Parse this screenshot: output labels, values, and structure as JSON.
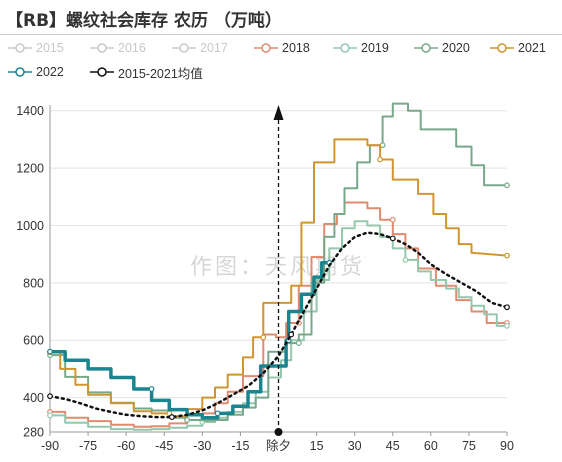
{
  "title": "【RB】螺纹社会库存 农历 （万吨）",
  "watermark": "作图：天风期货",
  "chart_data": {
    "type": "line",
    "title": "【RB】螺纹社会库存 农历 （万吨）",
    "xlabel": "",
    "ylabel": "",
    "xlim": [
      -90,
      90
    ],
    "ylim": [
      280,
      1420
    ],
    "xticks": [
      -90,
      -75,
      -60,
      -45,
      -30,
      -15,
      0,
      15,
      30,
      45,
      60,
      75,
      90
    ],
    "xtick_labels": [
      "-90",
      "-75",
      "-60",
      "-45",
      "-30",
      "-15",
      "除夕",
      "15",
      "30",
      "45",
      "60",
      "75",
      "90"
    ],
    "yticks": [
      280,
      400,
      600,
      800,
      1000,
      1200,
      1400
    ],
    "grid": "horizontal",
    "legend_position": "top",
    "marker_line": {
      "x": 0,
      "label": "除夕",
      "style": "dashed",
      "arrow": "up"
    },
    "series": [
      {
        "name": "2015",
        "color": "#c8c8c8",
        "visible": false,
        "points": []
      },
      {
        "name": "2016",
        "color": "#c8c8c8",
        "visible": false,
        "points": []
      },
      {
        "name": "2017",
        "color": "#c8c8c8",
        "visible": false,
        "points": []
      },
      {
        "name": "2018",
        "color": "#e08b6f",
        "visible": true,
        "width": 2,
        "markers": true,
        "points": [
          [
            -90,
            350
          ],
          [
            -84,
            350
          ],
          [
            -84,
            330
          ],
          [
            -75,
            330
          ],
          [
            -75,
            318
          ],
          [
            -66,
            318
          ],
          [
            -66,
            305
          ],
          [
            -57,
            305
          ],
          [
            -57,
            298
          ],
          [
            -50,
            298
          ],
          [
            -50,
            300
          ],
          [
            -43,
            300
          ],
          [
            -43,
            310
          ],
          [
            -36,
            310
          ],
          [
            -36,
            322
          ],
          [
            -30,
            322
          ],
          [
            -30,
            345
          ],
          [
            -25,
            345
          ],
          [
            -25,
            380
          ],
          [
            -20,
            380
          ],
          [
            -20,
            420
          ],
          [
            -14,
            420
          ],
          [
            -14,
            475
          ],
          [
            -6,
            475
          ],
          [
            -6,
            620
          ],
          [
            -1,
            620
          ],
          [
            -1,
            610
          ],
          [
            3,
            610
          ],
          [
            3,
            660
          ],
          [
            8,
            660
          ],
          [
            8,
            790
          ],
          [
            13,
            790
          ],
          [
            13,
            890
          ],
          [
            18,
            890
          ],
          [
            18,
            1005
          ],
          [
            23,
            1005
          ],
          [
            23,
            1040
          ],
          [
            26,
            1040
          ],
          [
            26,
            1080
          ],
          [
            35,
            1080
          ],
          [
            35,
            1060
          ],
          [
            40,
            1060
          ],
          [
            40,
            1020
          ],
          [
            45,
            1020
          ],
          [
            45,
            970
          ],
          [
            50,
            970
          ],
          [
            50,
            920
          ],
          [
            55,
            920
          ],
          [
            55,
            850
          ],
          [
            62,
            850
          ],
          [
            62,
            790
          ],
          [
            70,
            790
          ],
          [
            70,
            740
          ],
          [
            76,
            740
          ],
          [
            76,
            700
          ],
          [
            82,
            700
          ],
          [
            82,
            660
          ],
          [
            90,
            660
          ]
        ]
      },
      {
        "name": "2019",
        "color": "#94c7ad",
        "visible": true,
        "width": 2,
        "markers": true,
        "points": [
          [
            -90,
            338
          ],
          [
            -84,
            338
          ],
          [
            -84,
            312
          ],
          [
            -75,
            312
          ],
          [
            -75,
            298
          ],
          [
            -66,
            298
          ],
          [
            -66,
            290
          ],
          [
            -57,
            290
          ],
          [
            -57,
            288
          ],
          [
            -50,
            288
          ],
          [
            -50,
            290
          ],
          [
            -43,
            290
          ],
          [
            -43,
            295
          ],
          [
            -36,
            295
          ],
          [
            -36,
            302
          ],
          [
            -30,
            302
          ],
          [
            -30,
            315
          ],
          [
            -25,
            315
          ],
          [
            -25,
            330
          ],
          [
            -20,
            330
          ],
          [
            -20,
            350
          ],
          [
            -14,
            350
          ],
          [
            -14,
            380
          ],
          [
            -9,
            380
          ],
          [
            -9,
            420
          ],
          [
            -4,
            420
          ],
          [
            -4,
            470
          ],
          [
            1,
            470
          ],
          [
            1,
            530
          ],
          [
            5,
            530
          ],
          [
            5,
            600
          ],
          [
            10,
            600
          ],
          [
            10,
            700
          ],
          [
            15,
            700
          ],
          [
            15,
            810
          ],
          [
            20,
            810
          ],
          [
            20,
            920
          ],
          [
            25,
            920
          ],
          [
            25,
            990
          ],
          [
            30,
            990
          ],
          [
            30,
            1015
          ],
          [
            35,
            1015
          ],
          [
            35,
            1000
          ],
          [
            40,
            1000
          ],
          [
            40,
            960
          ],
          [
            45,
            960
          ],
          [
            45,
            920
          ],
          [
            50,
            920
          ],
          [
            50,
            880
          ],
          [
            55,
            880
          ],
          [
            55,
            840
          ],
          [
            60,
            840
          ],
          [
            60,
            810
          ],
          [
            66,
            810
          ],
          [
            66,
            780
          ],
          [
            71,
            780
          ],
          [
            71,
            750
          ],
          [
            76,
            750
          ],
          [
            76,
            720
          ],
          [
            81,
            720
          ],
          [
            81,
            690
          ],
          [
            86,
            690
          ],
          [
            86,
            650
          ],
          [
            90,
            650
          ]
        ]
      },
      {
        "name": "2020",
        "color": "#78a88a",
        "visible": true,
        "width": 2,
        "markers": true,
        "points": [
          [
            -90,
            548
          ],
          [
            -84,
            548
          ],
          [
            -84,
            472
          ],
          [
            -75,
            472
          ],
          [
            -75,
            418
          ],
          [
            -66,
            418
          ],
          [
            -66,
            382
          ],
          [
            -57,
            382
          ],
          [
            -57,
            362
          ],
          [
            -50,
            362
          ],
          [
            -50,
            355
          ],
          [
            -43,
            355
          ],
          [
            -43,
            330
          ],
          [
            -36,
            330
          ],
          [
            -36,
            322
          ],
          [
            -30,
            322
          ],
          [
            -30,
            320
          ],
          [
            -25,
            320
          ],
          [
            -25,
            322
          ],
          [
            -20,
            322
          ],
          [
            -20,
            340
          ],
          [
            -14,
            340
          ],
          [
            -14,
            365
          ],
          [
            -9,
            365
          ],
          [
            -9,
            400
          ],
          [
            -4,
            400
          ],
          [
            -4,
            560
          ],
          [
            3,
            560
          ],
          [
            3,
            590
          ],
          [
            8,
            590
          ],
          [
            8,
            620
          ],
          [
            13,
            620
          ],
          [
            13,
            800
          ],
          [
            18,
            800
          ],
          [
            18,
            960
          ],
          [
            22,
            960
          ],
          [
            22,
            1040
          ],
          [
            26,
            1040
          ],
          [
            26,
            1130
          ],
          [
            31,
            1130
          ],
          [
            31,
            1220
          ],
          [
            36,
            1220
          ],
          [
            36,
            1280
          ],
          [
            41,
            1280
          ],
          [
            41,
            1380
          ],
          [
            45,
            1380
          ],
          [
            45,
            1425
          ],
          [
            51,
            1425
          ],
          [
            51,
            1400
          ],
          [
            56,
            1400
          ],
          [
            56,
            1335
          ],
          [
            70,
            1335
          ],
          [
            70,
            1275
          ],
          [
            76,
            1275
          ],
          [
            76,
            1210
          ],
          [
            81,
            1210
          ],
          [
            81,
            1140
          ],
          [
            90,
            1140
          ]
        ]
      },
      {
        "name": "2021",
        "color": "#d0952f",
        "visible": true,
        "width": 2,
        "markers": true,
        "points": [
          [
            -90,
            558
          ],
          [
            -86,
            558
          ],
          [
            -86,
            500
          ],
          [
            -80,
            500
          ],
          [
            -80,
            445
          ],
          [
            -75,
            445
          ],
          [
            -75,
            410
          ],
          [
            -66,
            410
          ],
          [
            -66,
            380
          ],
          [
            -57,
            380
          ],
          [
            -57,
            352
          ],
          [
            -50,
            352
          ],
          [
            -50,
            345
          ],
          [
            -43,
            345
          ],
          [
            -43,
            335
          ],
          [
            -36,
            335
          ],
          [
            -36,
            360
          ],
          [
            -30,
            360
          ],
          [
            -30,
            400
          ],
          [
            -25,
            400
          ],
          [
            -25,
            435
          ],
          [
            -20,
            435
          ],
          [
            -20,
            480
          ],
          [
            -14,
            480
          ],
          [
            -14,
            540
          ],
          [
            -10,
            540
          ],
          [
            -10,
            610
          ],
          [
            -6,
            610
          ],
          [
            -6,
            730
          ],
          [
            5,
            730
          ],
          [
            5,
            790
          ],
          [
            9,
            790
          ],
          [
            9,
            1010
          ],
          [
            14,
            1010
          ],
          [
            14,
            1220
          ],
          [
            22,
            1220
          ],
          [
            22,
            1300
          ],
          [
            35,
            1300
          ],
          [
            35,
            1280
          ],
          [
            40,
            1280
          ],
          [
            40,
            1230
          ],
          [
            45,
            1230
          ],
          [
            45,
            1160
          ],
          [
            55,
            1160
          ],
          [
            55,
            1110
          ],
          [
            61,
            1110
          ],
          [
            61,
            1040
          ],
          [
            66,
            1040
          ],
          [
            66,
            990
          ],
          [
            71,
            990
          ],
          [
            71,
            935
          ],
          [
            76,
            935
          ],
          [
            76,
            905
          ],
          [
            90,
            895
          ]
        ]
      },
      {
        "name": "2022",
        "color": "#1a858f",
        "visible": true,
        "width": 3.5,
        "markers": true,
        "points": [
          [
            -90,
            560
          ],
          [
            -84,
            560
          ],
          [
            -84,
            530
          ],
          [
            -75,
            530
          ],
          [
            -75,
            500
          ],
          [
            -66,
            500
          ],
          [
            -66,
            470
          ],
          [
            -57,
            470
          ],
          [
            -57,
            430
          ],
          [
            -50,
            430
          ],
          [
            -50,
            390
          ],
          [
            -43,
            390
          ],
          [
            -43,
            358
          ],
          [
            -36,
            358
          ],
          [
            -36,
            340
          ],
          [
            -30,
            340
          ],
          [
            -30,
            330
          ],
          [
            -24,
            330
          ],
          [
            -24,
            345
          ],
          [
            -18,
            345
          ],
          [
            -18,
            370
          ],
          [
            -12,
            370
          ],
          [
            -12,
            420
          ],
          [
            -7,
            420
          ],
          [
            -7,
            510
          ],
          [
            3,
            510
          ],
          [
            3,
            600
          ],
          [
            4,
            600
          ],
          [
            4,
            700
          ],
          [
            9,
            700
          ],
          [
            9,
            760
          ],
          [
            14,
            760
          ],
          [
            14,
            820
          ],
          [
            17,
            820
          ],
          [
            17,
            870
          ],
          [
            20,
            870
          ]
        ]
      },
      {
        "name": "2015-2021均值",
        "color": "#111111",
        "visible": true,
        "width": 2.5,
        "dashed": true,
        "markers": true,
        "points": [
          [
            -90,
            405
          ],
          [
            -84,
            395
          ],
          [
            -78,
            380
          ],
          [
            -72,
            362
          ],
          [
            -66,
            350
          ],
          [
            -60,
            340
          ],
          [
            -54,
            335
          ],
          [
            -48,
            332
          ],
          [
            -42,
            332
          ],
          [
            -36,
            340
          ],
          [
            -30,
            355
          ],
          [
            -24,
            380
          ],
          [
            -18,
            410
          ],
          [
            -12,
            440
          ],
          [
            -6,
            485
          ],
          [
            0,
            545
          ],
          [
            5,
            620
          ],
          [
            10,
            700
          ],
          [
            15,
            780
          ],
          [
            20,
            860
          ],
          [
            25,
            920
          ],
          [
            30,
            960
          ],
          [
            35,
            975
          ],
          [
            40,
            970
          ],
          [
            45,
            955
          ],
          [
            50,
            935
          ],
          [
            55,
            905
          ],
          [
            60,
            865
          ],
          [
            66,
            830
          ],
          [
            72,
            800
          ],
          [
            78,
            770
          ],
          [
            84,
            730
          ],
          [
            90,
            715
          ]
        ]
      }
    ]
  }
}
